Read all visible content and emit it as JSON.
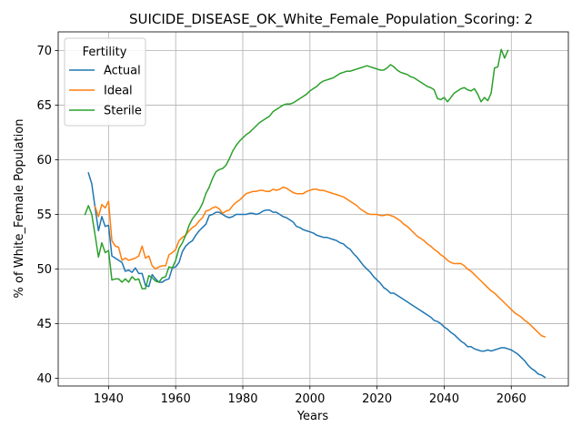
{
  "chart_data": {
    "type": "line",
    "title": "SUICIDE_DISEASE_OK_White_Female_Population_Scoring: 2",
    "xlabel": "Years",
    "ylabel": "% of White_Female Population",
    "xlim": [
      1925,
      2077
    ],
    "ylim": [
      39.3,
      71.7
    ],
    "xticks": [
      1940,
      1960,
      1980,
      2000,
      2020,
      2040,
      2060
    ],
    "yticks": [
      40,
      45,
      50,
      55,
      60,
      65,
      70
    ],
    "grid": true,
    "legend": {
      "title": "Fertility",
      "position": "upper-left"
    },
    "series": [
      {
        "name": "Actual",
        "color": "#1f77b4",
        "x": [
          1934,
          1935,
          1936,
          1937,
          1938,
          1939,
          1940,
          1941,
          1942,
          1943,
          1944,
          1945,
          1946,
          1947,
          1948,
          1949,
          1950,
          1951,
          1952,
          1953,
          1954,
          1955,
          1956,
          1957,
          1958,
          1959,
          1960,
          1961,
          1962,
          1963,
          1964,
          1965,
          1966,
          1967,
          1968,
          1969,
          1970,
          1971,
          1972,
          1973,
          1974,
          1975,
          1976,
          1977,
          1978,
          1979,
          1980,
          1981,
          1982,
          1983,
          1984,
          1985,
          1986,
          1987,
          1988,
          1989,
          1990,
          1991,
          1992,
          1993,
          1994,
          1995,
          1996,
          1997,
          1998,
          1999,
          2000,
          2001,
          2002,
          2003,
          2004,
          2005,
          2006,
          2007,
          2008,
          2009,
          2010,
          2011,
          2012,
          2013,
          2014,
          2015,
          2016,
          2017,
          2018,
          2019,
          2020,
          2021,
          2022,
          2023,
          2024,
          2025,
          2026,
          2027,
          2028,
          2029,
          2030,
          2031,
          2032,
          2033,
          2034,
          2035,
          2036,
          2037,
          2038,
          2039,
          2040,
          2041,
          2042,
          2043,
          2044,
          2045,
          2046,
          2047,
          2048,
          2049,
          2050,
          2051,
          2052,
          2053,
          2054,
          2055,
          2056,
          2057,
          2058,
          2059,
          2060,
          2061,
          2062,
          2063,
          2064,
          2065,
          2066,
          2067,
          2068,
          2069,
          2070
        ],
        "values": [
          58.8,
          57.8,
          55.6,
          53.5,
          54.8,
          53.9,
          54.0,
          51.2,
          51.0,
          50.8,
          50.6,
          49.8,
          49.9,
          49.7,
          50.1,
          49.6,
          49.6,
          48.5,
          48.4,
          49.5,
          49.1,
          48.8,
          48.8,
          49.0,
          49.1,
          50.1,
          50.2,
          50.6,
          51.6,
          52.1,
          52.4,
          52.6,
          53.1,
          53.5,
          53.8,
          54.1,
          54.9,
          55.0,
          55.2,
          55.2,
          55.0,
          54.8,
          54.7,
          54.8,
          55.0,
          55.0,
          55.0,
          55.0,
          55.1,
          55.1,
          55.0,
          55.1,
          55.3,
          55.4,
          55.4,
          55.2,
          55.2,
          55.0,
          54.8,
          54.7,
          54.5,
          54.3,
          53.9,
          53.8,
          53.6,
          53.5,
          53.4,
          53.3,
          53.1,
          53.0,
          52.9,
          52.9,
          52.8,
          52.7,
          52.6,
          52.4,
          52.3,
          52.0,
          51.8,
          51.4,
          51.1,
          50.7,
          50.3,
          50.0,
          49.7,
          49.3,
          49.0,
          48.7,
          48.3,
          48.1,
          47.8,
          47.8,
          47.6,
          47.4,
          47.2,
          47.0,
          46.8,
          46.6,
          46.4,
          46.2,
          46.0,
          45.8,
          45.6,
          45.3,
          45.2,
          45.0,
          44.7,
          44.5,
          44.2,
          44.0,
          43.7,
          43.4,
          43.2,
          42.9,
          42.9,
          42.7,
          42.6,
          42.5,
          42.5,
          42.6,
          42.5,
          42.6,
          42.7,
          42.8,
          42.8,
          42.7,
          42.6,
          42.4,
          42.2,
          41.9,
          41.6,
          41.2,
          40.9,
          40.7,
          40.4,
          40.3,
          40.1
        ]
      },
      {
        "name": "Ideal",
        "color": "#ff7f0e",
        "x": [
          1936,
          1937,
          1938,
          1939,
          1940,
          1941,
          1942,
          1943,
          1944,
          1945,
          1946,
          1947,
          1948,
          1949,
          1950,
          1951,
          1952,
          1953,
          1954,
          1955,
          1956,
          1957,
          1958,
          1959,
          1960,
          1961,
          1962,
          1963,
          1964,
          1965,
          1966,
          1967,
          1968,
          1969,
          1970,
          1971,
          1972,
          1973,
          1974,
          1975,
          1976,
          1977,
          1978,
          1979,
          1980,
          1981,
          1982,
          1983,
          1984,
          1985,
          1986,
          1987,
          1988,
          1989,
          1990,
          1991,
          1992,
          1993,
          1994,
          1995,
          1996,
          1997,
          1998,
          1999,
          2000,
          2001,
          2002,
          2003,
          2004,
          2005,
          2006,
          2007,
          2008,
          2009,
          2010,
          2011,
          2012,
          2013,
          2014,
          2015,
          2016,
          2017,
          2018,
          2019,
          2020,
          2021,
          2022,
          2023,
          2024,
          2025,
          2026,
          2027,
          2028,
          2029,
          2030,
          2031,
          2032,
          2033,
          2034,
          2035,
          2036,
          2037,
          2038,
          2039,
          2040,
          2041,
          2042,
          2043,
          2044,
          2045,
          2046,
          2047,
          2048,
          2049,
          2050,
          2051,
          2052,
          2053,
          2054,
          2055,
          2056,
          2057,
          2058,
          2059,
          2060,
          2061,
          2062,
          2063,
          2064,
          2065,
          2066,
          2067,
          2068,
          2069,
          2070
        ],
        "values": [
          55.7,
          54.8,
          55.9,
          55.6,
          56.2,
          52.6,
          52.1,
          52.0,
          50.8,
          51.0,
          50.8,
          50.9,
          51.0,
          51.2,
          52.1,
          51.0,
          51.2,
          50.3,
          50.0,
          50.2,
          50.3,
          50.3,
          51.3,
          51.5,
          51.8,
          52.6,
          52.9,
          53.1,
          53.5,
          53.8,
          54.0,
          54.4,
          54.7,
          55.3,
          55.4,
          55.6,
          55.7,
          55.5,
          55.1,
          55.3,
          55.4,
          55.8,
          56.1,
          56.3,
          56.6,
          56.9,
          57.0,
          57.1,
          57.1,
          57.2,
          57.2,
          57.1,
          57.1,
          57.3,
          57.2,
          57.3,
          57.5,
          57.4,
          57.2,
          57.0,
          56.9,
          56.9,
          56.9,
          57.1,
          57.2,
          57.3,
          57.3,
          57.2,
          57.2,
          57.1,
          57.0,
          56.9,
          56.8,
          56.7,
          56.6,
          56.4,
          56.2,
          56.0,
          55.8,
          55.5,
          55.3,
          55.1,
          55.0,
          55.0,
          55.0,
          54.9,
          54.9,
          55.0,
          54.9,
          54.8,
          54.6,
          54.4,
          54.1,
          53.9,
          53.6,
          53.3,
          53.0,
          52.8,
          52.6,
          52.3,
          52.1,
          51.8,
          51.6,
          51.3,
          51.1,
          50.8,
          50.6,
          50.5,
          50.5,
          50.5,
          50.3,
          50.0,
          49.8,
          49.5,
          49.2,
          48.9,
          48.6,
          48.3,
          48.0,
          47.8,
          47.5,
          47.2,
          46.9,
          46.6,
          46.3,
          46.0,
          45.8,
          45.6,
          45.3,
          45.1,
          44.8,
          44.5,
          44.2,
          43.9,
          43.8
        ]
      },
      {
        "name": "Sterile",
        "color": "#2ca02c",
        "x": [
          1933,
          1934,
          1935,
          1936,
          1937,
          1938,
          1939,
          1940,
          1941,
          1942,
          1943,
          1944,
          1945,
          1946,
          1947,
          1948,
          1949,
          1950,
          1951,
          1952,
          1953,
          1954,
          1955,
          1956,
          1957,
          1958,
          1959,
          1960,
          1961,
          1962,
          1963,
          1964,
          1965,
          1966,
          1967,
          1968,
          1969,
          1970,
          1971,
          1972,
          1973,
          1974,
          1975,
          1976,
          1977,
          1978,
          1979,
          1980,
          1981,
          1982,
          1983,
          1984,
          1985,
          1986,
          1987,
          1988,
          1989,
          1990,
          1991,
          1992,
          1993,
          1994,
          1995,
          1996,
          1997,
          1998,
          1999,
          2000,
          2001,
          2002,
          2003,
          2004,
          2005,
          2006,
          2007,
          2008,
          2009,
          2010,
          2011,
          2012,
          2013,
          2014,
          2015,
          2016,
          2017,
          2018,
          2019,
          2020,
          2021,
          2022,
          2023,
          2024,
          2025,
          2026,
          2027,
          2028,
          2029,
          2030,
          2031,
          2032,
          2033,
          2034,
          2035,
          2036,
          2037,
          2038,
          2039,
          2040,
          2041,
          2042,
          2043,
          2044,
          2045,
          2046,
          2047,
          2048,
          2049,
          2050,
          2051,
          2052,
          2053,
          2054,
          2055,
          2056,
          2057,
          2058,
          2059
        ],
        "values": [
          55.0,
          55.8,
          55.0,
          53.1,
          51.1,
          52.4,
          51.5,
          51.7,
          49.0,
          49.1,
          49.1,
          48.8,
          49.1,
          48.8,
          49.3,
          49.0,
          49.1,
          48.2,
          48.2,
          49.4,
          49.2,
          48.9,
          48.8,
          49.2,
          49.3,
          50.2,
          50.1,
          50.8,
          51.9,
          52.4,
          53.1,
          54.0,
          54.6,
          55.0,
          55.4,
          56.0,
          56.9,
          57.5,
          58.3,
          58.9,
          59.1,
          59.2,
          59.5,
          60.1,
          60.8,
          61.3,
          61.7,
          62.0,
          62.3,
          62.5,
          62.8,
          63.1,
          63.4,
          63.6,
          63.8,
          64.0,
          64.4,
          64.6,
          64.8,
          65.0,
          65.1,
          65.1,
          65.2,
          65.4,
          65.6,
          65.8,
          66.0,
          66.3,
          66.5,
          66.7,
          67.0,
          67.2,
          67.3,
          67.4,
          67.5,
          67.7,
          67.9,
          68.0,
          68.1,
          68.1,
          68.2,
          68.3,
          68.4,
          68.5,
          68.6,
          68.5,
          68.4,
          68.3,
          68.2,
          68.2,
          68.4,
          68.7,
          68.5,
          68.2,
          68.0,
          67.9,
          67.8,
          67.6,
          67.5,
          67.3,
          67.1,
          66.9,
          66.7,
          66.6,
          66.4,
          65.6,
          65.5,
          65.7,
          65.3,
          65.7,
          66.1,
          66.3,
          66.5,
          66.6,
          66.4,
          66.3,
          66.5,
          66.0,
          65.3,
          65.7,
          65.4,
          66.1,
          68.4,
          68.5,
          70.1,
          69.3,
          70.0
        ]
      }
    ]
  }
}
